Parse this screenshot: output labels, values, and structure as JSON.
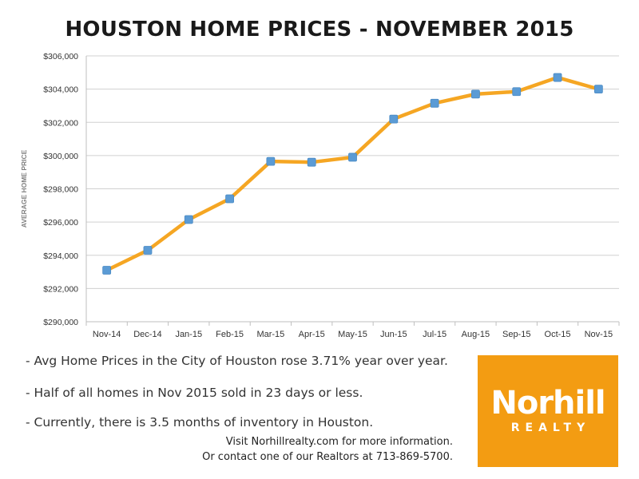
{
  "chart_data": {
    "type": "line",
    "title": "HOUSTON HOME PRICES - NOVEMBER 2015",
    "xlabel": "",
    "ylabel": "AVERAGE HOME PRICE",
    "categories": [
      "Nov-14",
      "Dec-14",
      "Jan-15",
      "Feb-15",
      "Mar-15",
      "Apr-15",
      "May-15",
      "Jun-15",
      "Jul-15",
      "Aug-15",
      "Sep-15",
      "Oct-15",
      "Nov-15"
    ],
    "series": [
      {
        "values": [
          293100,
          294300,
          296150,
          297400,
          299650,
          299600,
          299900,
          302200,
          303150,
          303700,
          303850,
          304700,
          304000
        ]
      }
    ],
    "ylim": [
      290000,
      306000
    ],
    "yticks": [
      290000,
      292000,
      294000,
      296000,
      298000,
      300000,
      302000,
      304000,
      306000
    ],
    "ytick_labels": [
      "$290,000",
      "$292,000",
      "$294,000",
      "$296,000",
      "$298,000",
      "$300,000",
      "$302,000",
      "$304,000",
      "$306,000"
    ],
    "grid": true,
    "line_color": "#f5a623",
    "marker_color": "#5b9bd5"
  },
  "notes": {
    "bullet1": "- Avg Home Prices in the City of Houston rose 3.71% year over year.",
    "bullet2": "- Half of all homes in Nov 2015 sold in 23 days or less.",
    "bullet3": "- Currently, there is 3.5 months of inventory in Houston."
  },
  "contact": {
    "line1": "Visit Norhillrealty.com for more information.",
    "line2": "Or contact one of our Realtors at 713-869-5700."
  },
  "logo": {
    "word": "Norhill",
    "sub": "REALTY",
    "color": "#f39c12"
  }
}
